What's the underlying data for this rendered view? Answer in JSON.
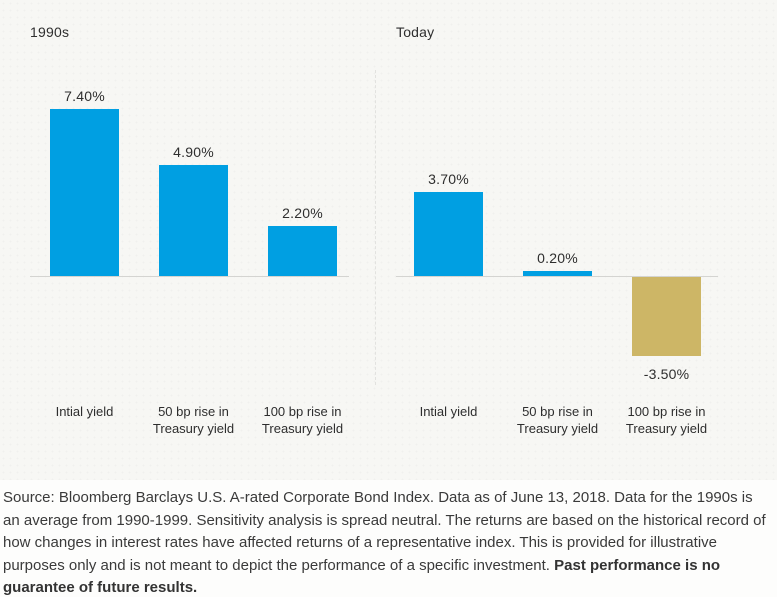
{
  "chart_data": [
    {
      "type": "bar",
      "title": "1990s",
      "categories": [
        "Intial yield",
        "50 bp rise in Treasury yield",
        "100 bp rise in Treasury yield"
      ],
      "values": [
        7.4,
        4.9,
        2.2
      ],
      "value_labels": [
        "7.40%",
        "4.90%",
        "2.20%"
      ],
      "bar_colors": [
        "#009fe2",
        "#009fe2",
        "#009fe2"
      ],
      "xlabel": "",
      "ylabel": "",
      "ylim": [
        -5,
        9
      ],
      "grid": false,
      "legend": false,
      "baseline": 0
    },
    {
      "type": "bar",
      "title": "Today",
      "categories": [
        "Intial yield",
        "50 bp rise in Treasury yield",
        "100 bp rise in Treasury yield"
      ],
      "values": [
        3.7,
        0.2,
        -3.5
      ],
      "value_labels": [
        "3.70%",
        "0.20%",
        "-3.50%"
      ],
      "bar_colors": [
        "#009fe2",
        "#009fe2",
        "#cdb666"
      ],
      "xlabel": "",
      "ylabel": "",
      "ylim": [
        -5,
        9
      ],
      "grid": false,
      "legend": false,
      "baseline": 0
    }
  ],
  "footnote": {
    "regular": "Source: Bloomberg Barclays U.S. A-rated Corporate Bond Index. Data as of June 13, 2018. Data for the 1990s is an average from 1990-1999. Sensitivity analysis is spread neutral. The returns are based on the historical record of how changes in interest rates have affected returns of a representative index. This is provided for illustrative purposes only and is not meant to depict the performance of a specific investment. ",
    "bold": "Past performance is no guarantee of future results."
  },
  "colors": {
    "bar_blue": "#009fe2",
    "bar_gold": "#cdb666",
    "axis_line": "#d4d4d1",
    "divider": "#e2e2df",
    "chart_text": "#2e2e2e",
    "footnote_text": "#3a3a3a",
    "chart_background": "#f7f7f4"
  }
}
